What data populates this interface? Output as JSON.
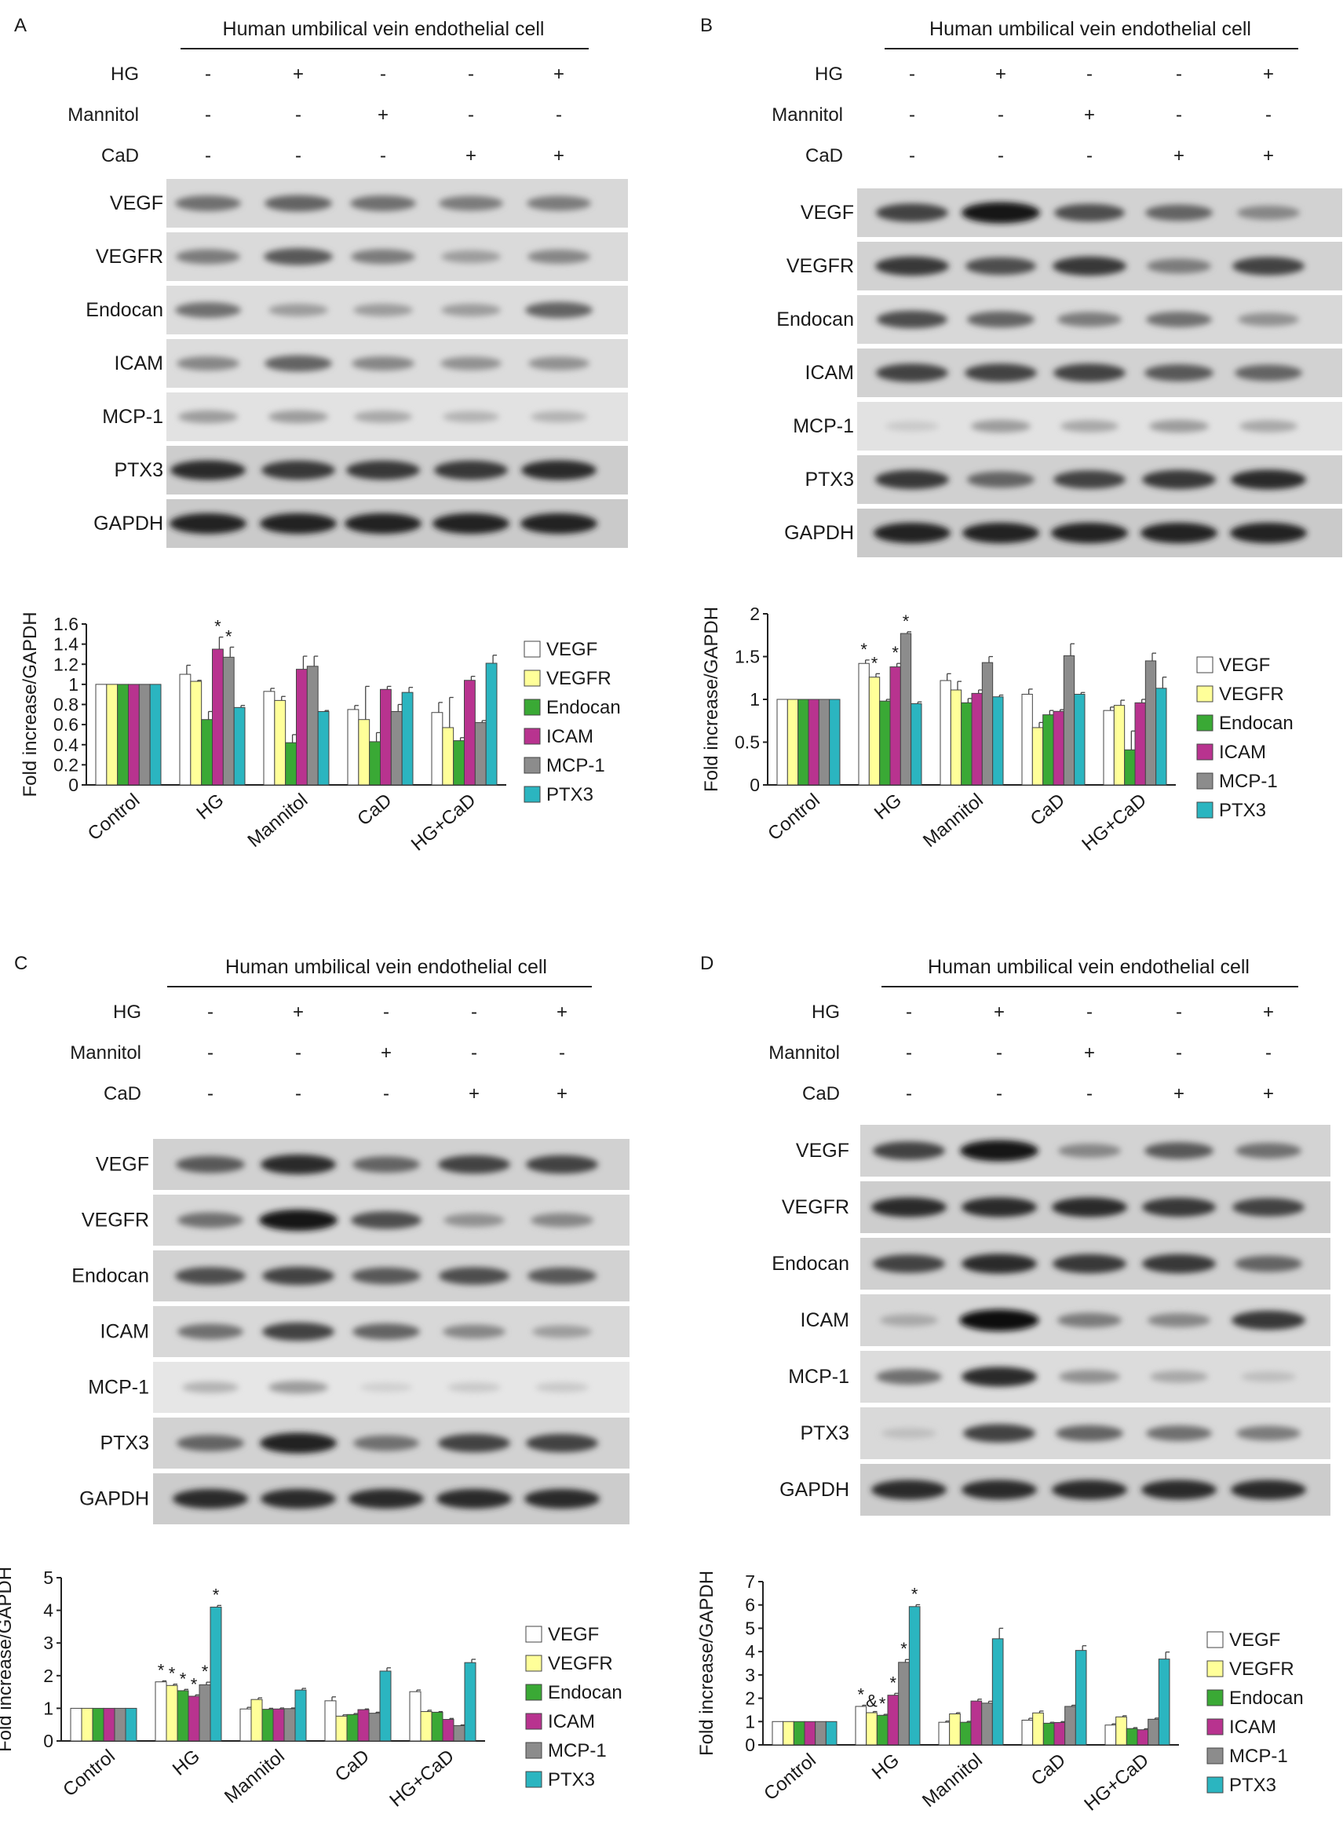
{
  "colors": {
    "VEGF": "#ffffff",
    "VEGFR": "#ffff99",
    "Endocan": "#3aa935",
    "ICAM": "#b8338f",
    "MCP-1": "#8c8c8c",
    "PTX3": "#2bb5c0"
  },
  "panels": [
    {
      "letter": "A",
      "header": "Human umbilical vein endothelial cell",
      "treatments": [
        {
          "label": "HG",
          "signs": [
            "-",
            "+",
            "-",
            "-",
            "+"
          ]
        },
        {
          "label": "Mannitol",
          "signs": [
            "-",
            "-",
            "+",
            "-",
            "-"
          ]
        },
        {
          "label": "CaD",
          "signs": [
            "-",
            "-",
            "-",
            "+",
            "+"
          ]
        }
      ],
      "blots": [
        "VEGF",
        "VEGFR",
        "Endocan",
        "ICAM",
        "MCP-1",
        "PTX3",
        "GAPDH"
      ],
      "band_intensity": [
        [
          0.55,
          0.6,
          0.55,
          0.5,
          0.5
        ],
        [
          0.5,
          0.65,
          0.5,
          0.35,
          0.45
        ],
        [
          0.55,
          0.35,
          0.35,
          0.35,
          0.6
        ],
        [
          0.45,
          0.6,
          0.45,
          0.4,
          0.4
        ],
        [
          0.35,
          0.35,
          0.3,
          0.25,
          0.25
        ],
        [
          0.85,
          0.8,
          0.8,
          0.8,
          0.85
        ],
        [
          0.9,
          0.9,
          0.9,
          0.9,
          0.9
        ]
      ],
      "chart_data": {
        "type": "bar",
        "ylabel": "Fold increase/GAPDH",
        "ylim": [
          0,
          1.6
        ],
        "yticks": [
          "0",
          "0.2",
          "0.4",
          "0.6",
          "0.8",
          "1",
          "1.2",
          "1.4",
          "1.6"
        ],
        "categories": [
          "Control",
          "HG",
          "Mannitol",
          "CaD",
          "HG+CaD"
        ],
        "series": [
          {
            "name": "VEGF",
            "values": [
              1.0,
              1.1,
              0.93,
              0.75,
              0.72
            ],
            "errors": [
              0,
              0.09,
              0.03,
              0.04,
              0.1
            ]
          },
          {
            "name": "VEGFR",
            "values": [
              1.0,
              1.03,
              0.84,
              0.65,
              0.57
            ],
            "errors": [
              0,
              0.01,
              0.04,
              0.33,
              0.3
            ]
          },
          {
            "name": "Endocan",
            "values": [
              1.0,
              0.65,
              0.42,
              0.43,
              0.44
            ],
            "errors": [
              0,
              0.08,
              0.08,
              0.09,
              0.03
            ]
          },
          {
            "name": "ICAM",
            "values": [
              1.0,
              1.35,
              1.15,
              0.95,
              1.04
            ],
            "errors": [
              0,
              0.12,
              0.13,
              0.03,
              0.04
            ]
          },
          {
            "name": "MCP-1",
            "values": [
              1.0,
              1.27,
              1.18,
              0.73,
              0.62
            ],
            "errors": [
              0,
              0.1,
              0.1,
              0.07,
              0.02
            ]
          },
          {
            "name": "PTX3",
            "values": [
              1.0,
              0.77,
              0.73,
              0.92,
              1.21
            ],
            "errors": [
              0,
              0.02,
              0.01,
              0.05,
              0.08
            ]
          }
        ],
        "annotations": [
          {
            "text": "*",
            "category": 1,
            "series": 3
          },
          {
            "text": "*",
            "category": 1,
            "series": 4
          }
        ],
        "legend": "right"
      }
    },
    {
      "letter": "B",
      "header": "Human umbilical vein endothelial cell",
      "treatments": [
        {
          "label": "HG",
          "signs": [
            "-",
            "+",
            "-",
            "-",
            "+"
          ]
        },
        {
          "label": "Mannitol",
          "signs": [
            "-",
            "-",
            "+",
            "-",
            "-"
          ]
        },
        {
          "label": "CaD",
          "signs": [
            "-",
            "-",
            "-",
            "+",
            "+"
          ]
        }
      ],
      "blots": [
        "VEGF",
        "VEGFR",
        "Endocan",
        "ICAM",
        "MCP-1",
        "PTX3",
        "GAPDH"
      ],
      "band_intensity": [
        [
          0.75,
          0.95,
          0.7,
          0.6,
          0.45
        ],
        [
          0.8,
          0.7,
          0.8,
          0.5,
          0.75
        ],
        [
          0.7,
          0.6,
          0.5,
          0.55,
          0.4
        ],
        [
          0.75,
          0.75,
          0.75,
          0.65,
          0.6
        ],
        [
          0.15,
          0.35,
          0.3,
          0.35,
          0.3
        ],
        [
          0.8,
          0.6,
          0.75,
          0.8,
          0.85
        ],
        [
          0.9,
          0.9,
          0.9,
          0.9,
          0.9
        ]
      ],
      "chart_data": {
        "type": "bar",
        "ylabel": "Fold increase/GAPDH",
        "ylim": [
          0,
          2
        ],
        "yticks": [
          "0",
          "0.5",
          "1",
          "1.5",
          "2"
        ],
        "categories": [
          "Control",
          "HG",
          "Mannitol",
          "CaD",
          "HG+CaD"
        ],
        "series": [
          {
            "name": "VEGF",
            "values": [
              1.0,
              1.42,
              1.22,
              1.06,
              0.87
            ],
            "errors": [
              0,
              0.04,
              0.08,
              0.06,
              0.04
            ]
          },
          {
            "name": "VEGFR",
            "values": [
              1.0,
              1.26,
              1.11,
              0.67,
              0.93
            ],
            "errors": [
              0,
              0.04,
              0.1,
              0.06,
              0.06
            ]
          },
          {
            "name": "Endocan",
            "values": [
              1.0,
              0.98,
              0.96,
              0.82,
              0.41
            ],
            "errors": [
              0,
              0.02,
              0.05,
              0.05,
              0.22
            ]
          },
          {
            "name": "ICAM",
            "values": [
              1.0,
              1.38,
              1.07,
              0.86,
              0.96
            ],
            "errors": [
              0,
              0.04,
              0.04,
              0.02,
              0.04
            ]
          },
          {
            "name": "MCP-1",
            "values": [
              1.0,
              1.77,
              1.43,
              1.51,
              1.45
            ],
            "errors": [
              0,
              0.02,
              0.07,
              0.14,
              0.09
            ]
          },
          {
            "name": "PTX3",
            "values": [
              1.0,
              0.95,
              1.03,
              1.06,
              1.13
            ],
            "errors": [
              0,
              0.02,
              0.02,
              0.02,
              0.13
            ]
          }
        ],
        "annotations": [
          {
            "text": "*",
            "category": 1,
            "series": 0
          },
          {
            "text": "*",
            "category": 1,
            "series": 1
          },
          {
            "text": "*",
            "category": 1,
            "series": 3
          },
          {
            "text": "*",
            "category": 1,
            "series": 4
          }
        ],
        "legend": "right"
      }
    },
    {
      "letter": "C",
      "header": "Human umbilical vein endothelial cell",
      "treatments": [
        {
          "label": "HG",
          "signs": [
            "-",
            "+",
            "-",
            "-",
            "+"
          ]
        },
        {
          "label": "Mannitol",
          "signs": [
            "-",
            "-",
            "+",
            "-",
            "-"
          ]
        },
        {
          "label": "CaD",
          "signs": [
            "-",
            "-",
            "-",
            "+",
            "+"
          ]
        }
      ],
      "blots": [
        "VEGF",
        "VEGFR",
        "Endocan",
        "ICAM",
        "MCP-1",
        "PTX3",
        "GAPDH"
      ],
      "band_intensity": [
        [
          0.65,
          0.85,
          0.6,
          0.75,
          0.75
        ],
        [
          0.55,
          0.95,
          0.7,
          0.4,
          0.45
        ],
        [
          0.7,
          0.75,
          0.65,
          0.7,
          0.65
        ],
        [
          0.55,
          0.75,
          0.6,
          0.45,
          0.35
        ],
        [
          0.25,
          0.35,
          0.12,
          0.15,
          0.15
        ],
        [
          0.6,
          0.9,
          0.55,
          0.75,
          0.75
        ],
        [
          0.85,
          0.85,
          0.85,
          0.85,
          0.85
        ]
      ],
      "chart_data": {
        "type": "bar",
        "ylabel": "Fold increase/GAPDH",
        "ylim": [
          0,
          5
        ],
        "yticks": [
          "0",
          "1",
          "2",
          "3",
          "4",
          "5"
        ],
        "categories": [
          "Control",
          "HG",
          "Mannitol",
          "CaD",
          "HG+CaD"
        ],
        "series": [
          {
            "name": "VEGF",
            "values": [
              1.0,
              1.81,
              0.98,
              1.23,
              1.51
            ],
            "errors": [
              0,
              0.03,
              0.05,
              0.12,
              0.05
            ]
          },
          {
            "name": "VEGFR",
            "values": [
              1.0,
              1.7,
              1.27,
              0.76,
              0.9
            ],
            "errors": [
              0,
              0.04,
              0.05,
              0.04,
              0.04
            ]
          },
          {
            "name": "Endocan",
            "values": [
              1.0,
              1.54,
              0.97,
              0.81,
              0.88
            ],
            "errors": [
              0,
              0.04,
              0.03,
              0.03,
              0.02
            ]
          },
          {
            "name": "ICAM",
            "values": [
              1.0,
              1.37,
              0.98,
              0.96,
              0.66
            ],
            "errors": [
              0,
              0.04,
              0.03,
              0.02,
              0.03
            ]
          },
          {
            "name": "MCP-1",
            "values": [
              1.0,
              1.72,
              0.99,
              0.85,
              0.47
            ],
            "errors": [
              0,
              0.08,
              0.02,
              0.03,
              0.02
            ]
          },
          {
            "name": "PTX3",
            "values": [
              1.0,
              4.1,
              1.56,
              2.14,
              2.4
            ],
            "errors": [
              0,
              0.05,
              0.05,
              0.1,
              0.1
            ]
          }
        ],
        "annotations": [
          {
            "text": "*",
            "category": 1,
            "series": 0
          },
          {
            "text": "*",
            "category": 1,
            "series": 1
          },
          {
            "text": "*",
            "category": 1,
            "series": 2
          },
          {
            "text": "*",
            "category": 1,
            "series": 3
          },
          {
            "text": "*",
            "category": 1,
            "series": 4
          },
          {
            "text": "*",
            "category": 1,
            "series": 5
          }
        ],
        "legend": "right"
      }
    },
    {
      "letter": "D",
      "header": "Human umbilical vein endothelial cell",
      "treatments": [
        {
          "label": "HG",
          "signs": [
            "-",
            "+",
            "-",
            "-",
            "+"
          ]
        },
        {
          "label": "Mannitol",
          "signs": [
            "-",
            "-",
            "+",
            "-",
            "-"
          ]
        },
        {
          "label": "CaD",
          "signs": [
            "-",
            "-",
            "-",
            "+",
            "+"
          ]
        }
      ],
      "blots": [
        "VEGF",
        "VEGFR",
        "Endocan",
        "ICAM",
        "MCP-1",
        "PTX3",
        "GAPDH"
      ],
      "band_intensity": [
        [
          0.75,
          0.95,
          0.45,
          0.65,
          0.55
        ],
        [
          0.85,
          0.85,
          0.85,
          0.8,
          0.75
        ],
        [
          0.75,
          0.85,
          0.8,
          0.8,
          0.6
        ],
        [
          0.3,
          0.98,
          0.5,
          0.45,
          0.8
        ],
        [
          0.55,
          0.85,
          0.4,
          0.3,
          0.2
        ],
        [
          0.2,
          0.75,
          0.6,
          0.55,
          0.5
        ],
        [
          0.85,
          0.85,
          0.85,
          0.85,
          0.85
        ]
      ],
      "chart_data": {
        "type": "bar",
        "ylabel": "Fold increase/GAPDH",
        "ylim": [
          0,
          7
        ],
        "yticks": [
          "0",
          "1",
          "2",
          "3",
          "4",
          "5",
          "6",
          "7"
        ],
        "categories": [
          "Control",
          "HG",
          "Mannitol",
          "CaD",
          "HG+CaD"
        ],
        "series": [
          {
            "name": "VEGF",
            "values": [
              1.0,
              1.65,
              0.97,
              1.06,
              0.85
            ],
            "errors": [
              0,
              0.05,
              0.05,
              0.08,
              0.05
            ]
          },
          {
            "name": "VEGFR",
            "values": [
              1.0,
              1.38,
              1.33,
              1.37,
              1.2
            ],
            "errors": [
              0,
              0.05,
              0.05,
              0.08,
              0.05
            ]
          },
          {
            "name": "Endocan",
            "values": [
              1.0,
              1.27,
              0.97,
              0.93,
              0.7
            ],
            "errors": [
              0,
              0.04,
              0.04,
              0.04,
              0.04
            ]
          },
          {
            "name": "ICAM",
            "values": [
              1.0,
              2.13,
              1.88,
              0.96,
              0.65
            ],
            "errors": [
              0,
              0.08,
              0.08,
              0.04,
              0.04
            ]
          },
          {
            "name": "MCP-1",
            "values": [
              1.0,
              3.54,
              1.79,
              1.65,
              1.1
            ],
            "errors": [
              0,
              0.12,
              0.08,
              0.05,
              0.05
            ]
          },
          {
            "name": "PTX3",
            "values": [
              1.0,
              5.93,
              4.55,
              4.05,
              3.68
            ],
            "errors": [
              0,
              0.08,
              0.45,
              0.2,
              0.3
            ]
          }
        ],
        "annotations": [
          {
            "text": "*",
            "category": 1,
            "series": 0
          },
          {
            "text": "&",
            "category": 1,
            "series": 1
          },
          {
            "text": "*",
            "category": 1,
            "series": 2
          },
          {
            "text": "*",
            "category": 1,
            "series": 3
          },
          {
            "text": "*",
            "category": 1,
            "series": 4
          },
          {
            "text": "*",
            "category": 1,
            "series": 5
          }
        ],
        "legend": "right"
      }
    }
  ]
}
